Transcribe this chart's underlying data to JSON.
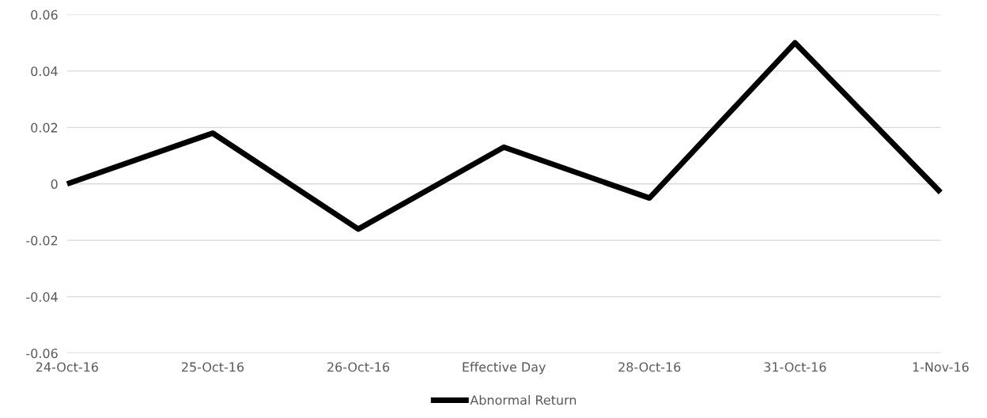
{
  "chart_data": {
    "type": "line",
    "categories": [
      "24-Oct-16",
      "25-Oct-16",
      "26-Oct-16",
      "Effective Day",
      "28-Oct-16",
      "31-Oct-16",
      "1-Nov-16"
    ],
    "series": [
      {
        "name": "Abnormal Return",
        "color": "#000000",
        "values": [
          0.0,
          0.018,
          -0.016,
          0.013,
          -0.005,
          0.05,
          -0.003
        ]
      }
    ],
    "ylim": [
      -0.06,
      0.06
    ],
    "yticks": [
      {
        "value": -0.06,
        "label": "-0.06"
      },
      {
        "value": -0.04,
        "label": "-0.04"
      },
      {
        "value": -0.02,
        "label": "-0.02"
      },
      0,
      0.02,
      0.04,
      0.06
    ],
    "grid": "y",
    "legend": "bottom",
    "marker": "none",
    "line_style": "solid"
  }
}
